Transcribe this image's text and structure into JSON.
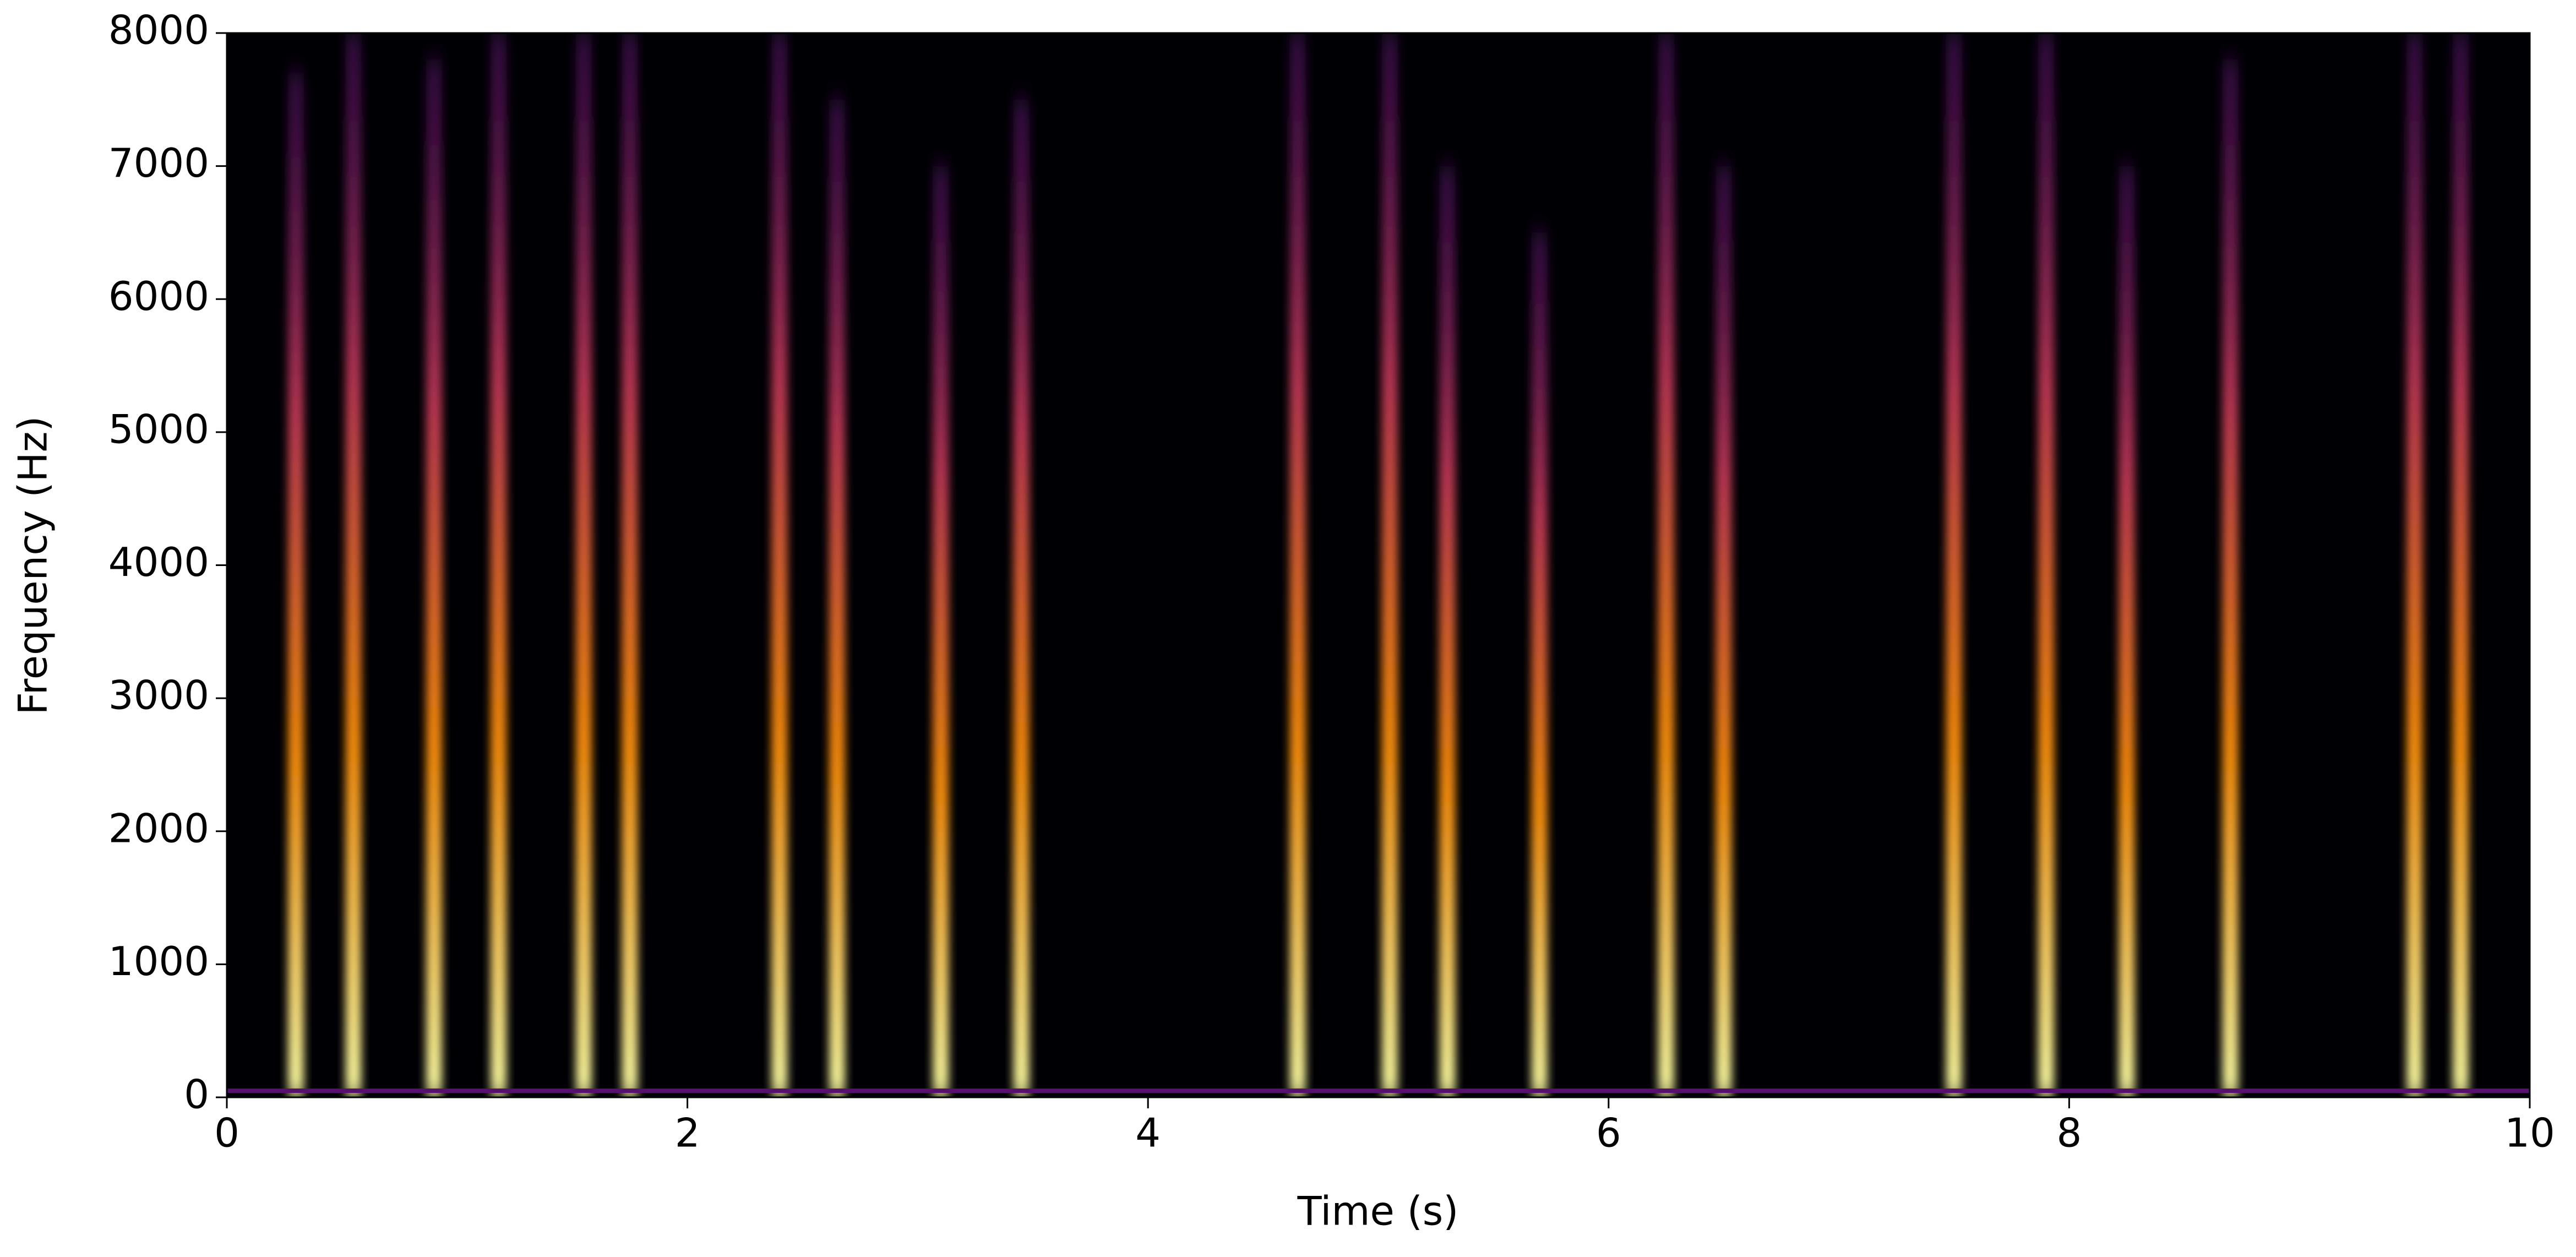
{
  "chart_data": {
    "type": "spectrogram",
    "xlabel": "Time (s)",
    "ylabel": "Frequency (Hz)",
    "x": [
      0.3,
      0.55,
      0.9,
      1.18,
      1.55,
      1.75,
      2.4,
      2.65,
      3.1,
      3.45,
      4.65,
      5.05,
      5.3,
      5.7,
      6.25,
      6.5,
      7.5,
      7.9,
      8.25,
      8.7,
      9.5,
      9.7
    ],
    "values": [
      7700,
      8000,
      7800,
      8000,
      8000,
      8000,
      8000,
      7500,
      7000,
      7500,
      8000,
      8000,
      7000,
      6500,
      8000,
      7000,
      8000,
      8000,
      7000,
      7800,
      8000,
      8000
    ],
    "xlim": [
      0,
      10
    ],
    "xticks": [
      0,
      2,
      4,
      6,
      8,
      10
    ],
    "ylim": [
      0,
      8000
    ],
    "yticks": [
      0,
      1000,
      2000,
      3000,
      4000,
      5000,
      6000,
      7000,
      8000
    ],
    "colormap": [
      "#000004",
      "#57106e",
      "#bc3754",
      "#f98e09",
      "#fcffa4"
    ]
  }
}
